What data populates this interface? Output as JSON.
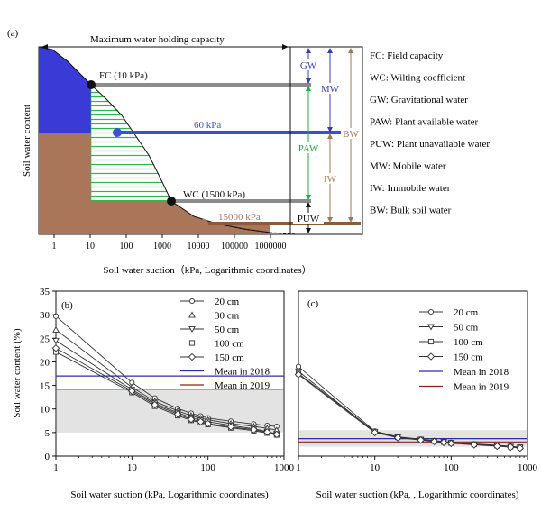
{
  "chart_data": [
    {
      "panel": "(a)",
      "type": "area",
      "xlabel": "Soil water suction（kPa, Logarithmic coordinates）",
      "ylabel": "Soil water content",
      "x_scale": "log",
      "x_ticks": [
        "1",
        "10",
        "100",
        "1000",
        "10000",
        "100000",
        "1000000"
      ],
      "x_tick_values": [
        1,
        10,
        100,
        1000,
        10000,
        100000,
        1000000
      ],
      "top_label": "Maximum water holding capacity",
      "markers": [
        {
          "label": "FC (10 kPa)",
          "x": 10,
          "color": "#111111",
          "line_color": "#8c8c8c"
        },
        {
          "label": "60 kPa",
          "x": 60,
          "color": "#3a4fd4",
          "line_color": "#3a4fd4"
        },
        {
          "label": "WC (1500 kPa)",
          "x": 1500,
          "color": "#111111",
          "line_color": "#8c8c8c"
        },
        {
          "label": "15000 kPa",
          "x": 15000,
          "color": "#a9765a",
          "line_color": "#8b5a3c"
        }
      ],
      "brackets": [
        {
          "label": "GW",
          "color": "#3a3fa8"
        },
        {
          "label": "MW",
          "color": "#3a3fa8"
        },
        {
          "label": "BW",
          "color": "#a07850"
        },
        {
          "label": "PAW",
          "color": "#22aa44"
        },
        {
          "label": "IW",
          "color": "#a07850"
        },
        {
          "label": "PUW",
          "color": "#111111"
        }
      ],
      "legend": [
        "FC: Field capacity",
        "WC: Wilting coefficient",
        "GW: Gravitational water",
        "PAW: Plant available water",
        "PUW: Plant unavailable water",
        "MW: Mobile water",
        "IW: Immobile water",
        "BW: Bulk soil water"
      ],
      "colors": {
        "gravitational": "#3a3ad6",
        "soil": "#a9765a",
        "paw_hatch": "#2db84a"
      }
    },
    {
      "panel": "(b)",
      "type": "line",
      "xlabel": "Soil water suction (kPa, Logarithmic coordinates)",
      "ylabel": "Soil water content (%)",
      "x_scale": "log",
      "xlim": [
        1,
        1000
      ],
      "ylim": [
        0,
        35
      ],
      "x_ticks": [
        "1",
        "10",
        "100",
        "1000"
      ],
      "y_ticks": [
        "0",
        "5",
        "10",
        "15",
        "20",
        "25",
        "30",
        "35"
      ],
      "x": [
        1,
        10,
        20,
        40,
        60,
        80,
        100,
        200,
        400,
        600,
        800
      ],
      "series": [
        {
          "name": "20 cm",
          "marker": "circle",
          "values": [
            29.7,
            15.6,
            12.3,
            10.1,
            9.1,
            8.5,
            8.1,
            7.4,
            6.8,
            6.5,
            6.3
          ]
        },
        {
          "name": "30 cm",
          "marker": "triangle-up",
          "values": [
            26.8,
            14.6,
            11.6,
            9.6,
            8.6,
            8.0,
            7.7,
            6.9,
            6.3,
            5.9,
            5.5
          ]
        },
        {
          "name": "50 cm",
          "marker": "triangle-down",
          "values": [
            24.5,
            14.1,
            11.2,
            9.2,
            8.2,
            7.6,
            7.3,
            6.5,
            5.8,
            5.2,
            4.7
          ]
        },
        {
          "name": "100 cm",
          "marker": "square",
          "values": [
            22.1,
            13.5,
            10.6,
            8.6,
            7.6,
            7.1,
            6.7,
            6.0,
            5.4,
            4.9,
            4.5
          ]
        },
        {
          "name": "150 cm",
          "marker": "diamond",
          "values": [
            22.9,
            13.8,
            10.9,
            8.9,
            7.8,
            7.3,
            6.9,
            6.2,
            5.6,
            5.1,
            4.6
          ]
        }
      ],
      "hlines": [
        {
          "name": "Mean in 2018",
          "y": 17.0,
          "color": "#2b2bb0"
        },
        {
          "name": "Mean in 2019",
          "y": 14.2,
          "color": "#8b2020"
        }
      ],
      "band": {
        "ymin": 5,
        "ymax": 14.2,
        "color": "#e3e3e3"
      }
    },
    {
      "panel": "(c)",
      "type": "line",
      "xlabel": "Soil water suction (kPa, , Logarithmic coordinates)",
      "x_scale": "log",
      "xlim": [
        1,
        1000
      ],
      "ylim": [
        0,
        35
      ],
      "x_ticks": [
        "1",
        "10",
        "100",
        "1000"
      ],
      "x": [
        1,
        10,
        20,
        40,
        60,
        80,
        100,
        200,
        400,
        600,
        800
      ],
      "series": [
        {
          "name": "20 cm",
          "marker": "circle",
          "values": [
            19.0,
            5.3,
            4.1,
            3.6,
            3.3,
            3.1,
            2.9,
            2.6,
            2.3,
            2.1,
            1.9
          ]
        },
        {
          "name": "50 cm",
          "marker": "triangle-down",
          "values": [
            18.0,
            5.1,
            4.0,
            3.5,
            3.2,
            3.0,
            2.8,
            2.5,
            2.2,
            2.0,
            1.8
          ]
        },
        {
          "name": "100 cm",
          "marker": "square",
          "values": [
            17.5,
            5.2,
            4.0,
            3.5,
            3.2,
            3.0,
            2.8,
            2.5,
            2.2,
            2.0,
            1.9
          ]
        },
        {
          "name": "150 cm",
          "marker": "diamond",
          "values": [
            17.3,
            5.0,
            3.9,
            3.4,
            3.1,
            2.9,
            2.7,
            2.4,
            2.1,
            1.9,
            1.7
          ]
        }
      ],
      "hlines": [
        {
          "name": "Mean in 2018",
          "y": 3.7,
          "color": "#2b2bb0"
        },
        {
          "name": "Mean in 2019",
          "y": 3.0,
          "color": "#8b2020"
        }
      ],
      "band": {
        "ymin": 2.0,
        "ymax": 5.5,
        "color": "#e3e3e3"
      }
    }
  ]
}
